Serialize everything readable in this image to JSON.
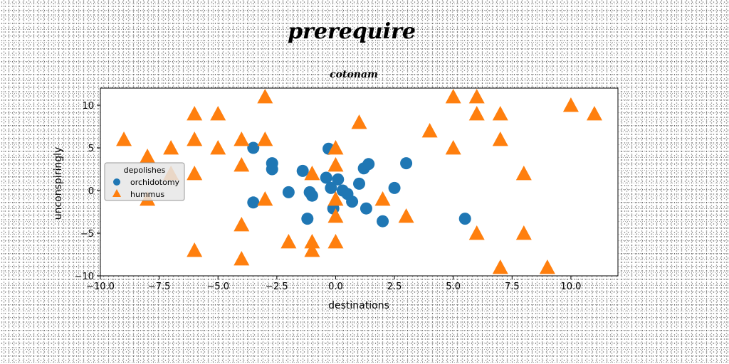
{
  "chart_data": {
    "type": "scatter",
    "title": "prerequire",
    "subtitle": "cotonam",
    "xlabel": "destinations",
    "ylabel": "unconspiringly",
    "xlim": [
      -10,
      12
    ],
    "ylim": [
      -10,
      12
    ],
    "xticks": [
      -10,
      -7.5,
      -5,
      -2.5,
      0,
      2.5,
      5,
      7.5,
      10
    ],
    "xtick_labels": [
      "−10.0",
      "−7.5",
      "−5.0",
      "−2.5",
      "0.0",
      "2.5",
      "5.0",
      "7.5",
      "10.0"
    ],
    "yticks": [
      -10,
      -5,
      0,
      5,
      10
    ],
    "ytick_labels": [
      "−10",
      "−5",
      "0",
      "5",
      "10"
    ],
    "grid": false,
    "legend": {
      "title": "depolishes",
      "placement": "center-left"
    },
    "series": [
      {
        "name": "orchidotomy",
        "marker": "circle",
        "color": "#1f77b4",
        "points": [
          [
            -3.5,
            5
          ],
          [
            -2.7,
            3.2
          ],
          [
            -2.7,
            2.5
          ],
          [
            -2.0,
            -0.2
          ],
          [
            -1.4,
            2.3
          ],
          [
            -1.1,
            -0.2
          ],
          [
            -1.0,
            -0.6
          ],
          [
            -1.2,
            -3.3
          ],
          [
            -3.5,
            -1.4
          ],
          [
            -0.4,
            1.5
          ],
          [
            -0.2,
            0.3
          ],
          [
            0.1,
            1.3
          ],
          [
            0.3,
            0.0
          ],
          [
            0.5,
            -0.4
          ],
          [
            0.7,
            -1.3
          ],
          [
            1.0,
            0.8
          ],
          [
            1.2,
            2.6
          ],
          [
            1.4,
            3.1
          ],
          [
            1.3,
            -2.1
          ],
          [
            -0.3,
            4.9
          ],
          [
            -0.1,
            -2.1
          ],
          [
            2.0,
            -3.6
          ],
          [
            2.5,
            0.3
          ],
          [
            3.0,
            3.2
          ],
          [
            5.5,
            -3.3
          ]
        ]
      },
      {
        "name": "hummus",
        "marker": "triangle",
        "color": "#ff7f0e",
        "points": [
          [
            -9,
            6
          ],
          [
            -8,
            4
          ],
          [
            -8,
            -1
          ],
          [
            -7,
            5
          ],
          [
            -7,
            2
          ],
          [
            -6,
            9
          ],
          [
            -6,
            6
          ],
          [
            -6,
            2
          ],
          [
            -6,
            -7
          ],
          [
            -5,
            9
          ],
          [
            -5,
            5
          ],
          [
            -4,
            6
          ],
          [
            -4,
            3
          ],
          [
            -4,
            -4
          ],
          [
            -4,
            -8
          ],
          [
            -3,
            11
          ],
          [
            -3,
            6
          ],
          [
            -3,
            -1
          ],
          [
            -2,
            -6
          ],
          [
            -1,
            -6
          ],
          [
            -1,
            -7
          ],
          [
            -1,
            2
          ],
          [
            0,
            5
          ],
          [
            0,
            3
          ],
          [
            0,
            -1
          ],
          [
            0,
            -3
          ],
          [
            0,
            -6
          ],
          [
            1,
            8
          ],
          [
            2,
            -1
          ],
          [
            3,
            -3
          ],
          [
            4,
            7
          ],
          [
            5,
            11
          ],
          [
            5,
            5
          ],
          [
            6,
            11
          ],
          [
            6,
            9
          ],
          [
            6,
            -5
          ],
          [
            7,
            9
          ],
          [
            7,
            6
          ],
          [
            7,
            -9
          ],
          [
            8,
            2
          ],
          [
            8,
            -5
          ],
          [
            9,
            -9
          ],
          [
            10,
            10
          ],
          [
            11,
            9
          ]
        ]
      }
    ]
  }
}
